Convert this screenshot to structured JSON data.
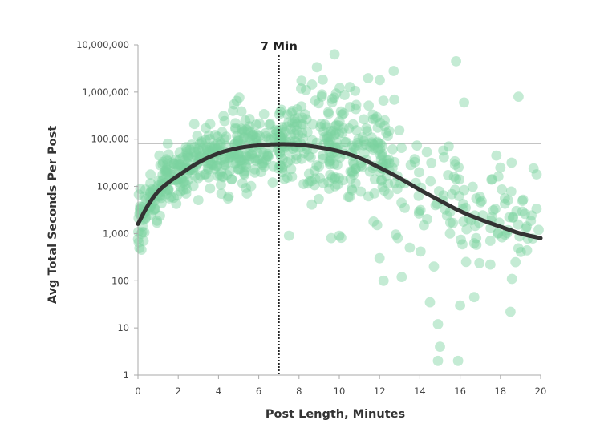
{
  "chart_data": {
    "type": "scatter",
    "title": "",
    "xlabel": "Post Length, Minutes",
    "ylabel": "Avg Total Seconds Per Post",
    "x_range": [
      0,
      20
    ],
    "y_range": [
      1,
      10000000
    ],
    "y_scale": "log",
    "grid": false,
    "x_ticks": [
      "0",
      "2",
      "4",
      "6",
      "8",
      "10",
      "12",
      "14",
      "16",
      "18",
      "20"
    ],
    "y_ticks": [
      "1",
      "10",
      "100",
      "1,000",
      "10,000",
      "100,000",
      "1,000,000",
      "10,000,000"
    ],
    "annotation": {
      "text": "7 Min",
      "x": 7
    },
    "reference_y": 80000,
    "colors": {
      "points": "#7dd3a0",
      "curve": "#333333",
      "reference_line": "#bbbbbb"
    },
    "trend": {
      "name": "",
      "x": [
        0,
        0.5,
        1,
        1.5,
        2,
        3,
        4,
        5,
        6,
        7,
        8,
        9,
        10,
        11,
        12,
        13,
        14,
        15,
        16,
        17,
        18,
        19,
        20
      ],
      "y": [
        1600,
        4000,
        7800,
        12000,
        17000,
        32000,
        50000,
        65000,
        74000,
        78000,
        76000,
        67000,
        55000,
        40000,
        25000,
        15000,
        8500,
        5000,
        3000,
        2000,
        1400,
        1000,
        800
      ]
    },
    "outliers": [
      {
        "x": 15.8,
        "y": 4500000
      },
      {
        "x": 12.7,
        "y": 2800000
      },
      {
        "x": 18.9,
        "y": 800000
      },
      {
        "x": 16.2,
        "y": 600000
      },
      {
        "x": 7.5,
        "y": 900
      },
      {
        "x": 9.6,
        "y": 800
      },
      {
        "x": 10.0,
        "y": 900
      },
      {
        "x": 12.2,
        "y": 100
      },
      {
        "x": 13.1,
        "y": 120
      },
      {
        "x": 14.5,
        "y": 35
      },
      {
        "x": 16.0,
        "y": 30
      },
      {
        "x": 16.7,
        "y": 45
      },
      {
        "x": 18.5,
        "y": 22
      },
      {
        "x": 14.9,
        "y": 12
      },
      {
        "x": 15.0,
        "y": 4
      },
      {
        "x": 14.9,
        "y": 2
      },
      {
        "x": 15.9,
        "y": 2
      },
      {
        "x": 14.7,
        "y": 200
      },
      {
        "x": 16.3,
        "y": 250
      },
      {
        "x": 17.5,
        "y": 220
      },
      {
        "x": 12.0,
        "y": 300
      },
      {
        "x": 17.5,
        "y": 700
      },
      {
        "x": 19.9,
        "y": 1200
      },
      {
        "x": 19.8,
        "y": 18000
      },
      {
        "x": 18.0,
        "y": 25000
      },
      {
        "x": 17.8,
        "y": 45000
      },
      {
        "x": 15.5,
        "y": 1000
      },
      {
        "x": 13.5,
        "y": 500
      },
      {
        "x": 12.9,
        "y": 800
      },
      {
        "x": 11.7,
        "y": 1800
      },
      {
        "x": 14.2,
        "y": 1500
      },
      {
        "x": 16.8,
        "y": 800
      },
      {
        "x": 18.8,
        "y": 3000
      }
    ]
  }
}
